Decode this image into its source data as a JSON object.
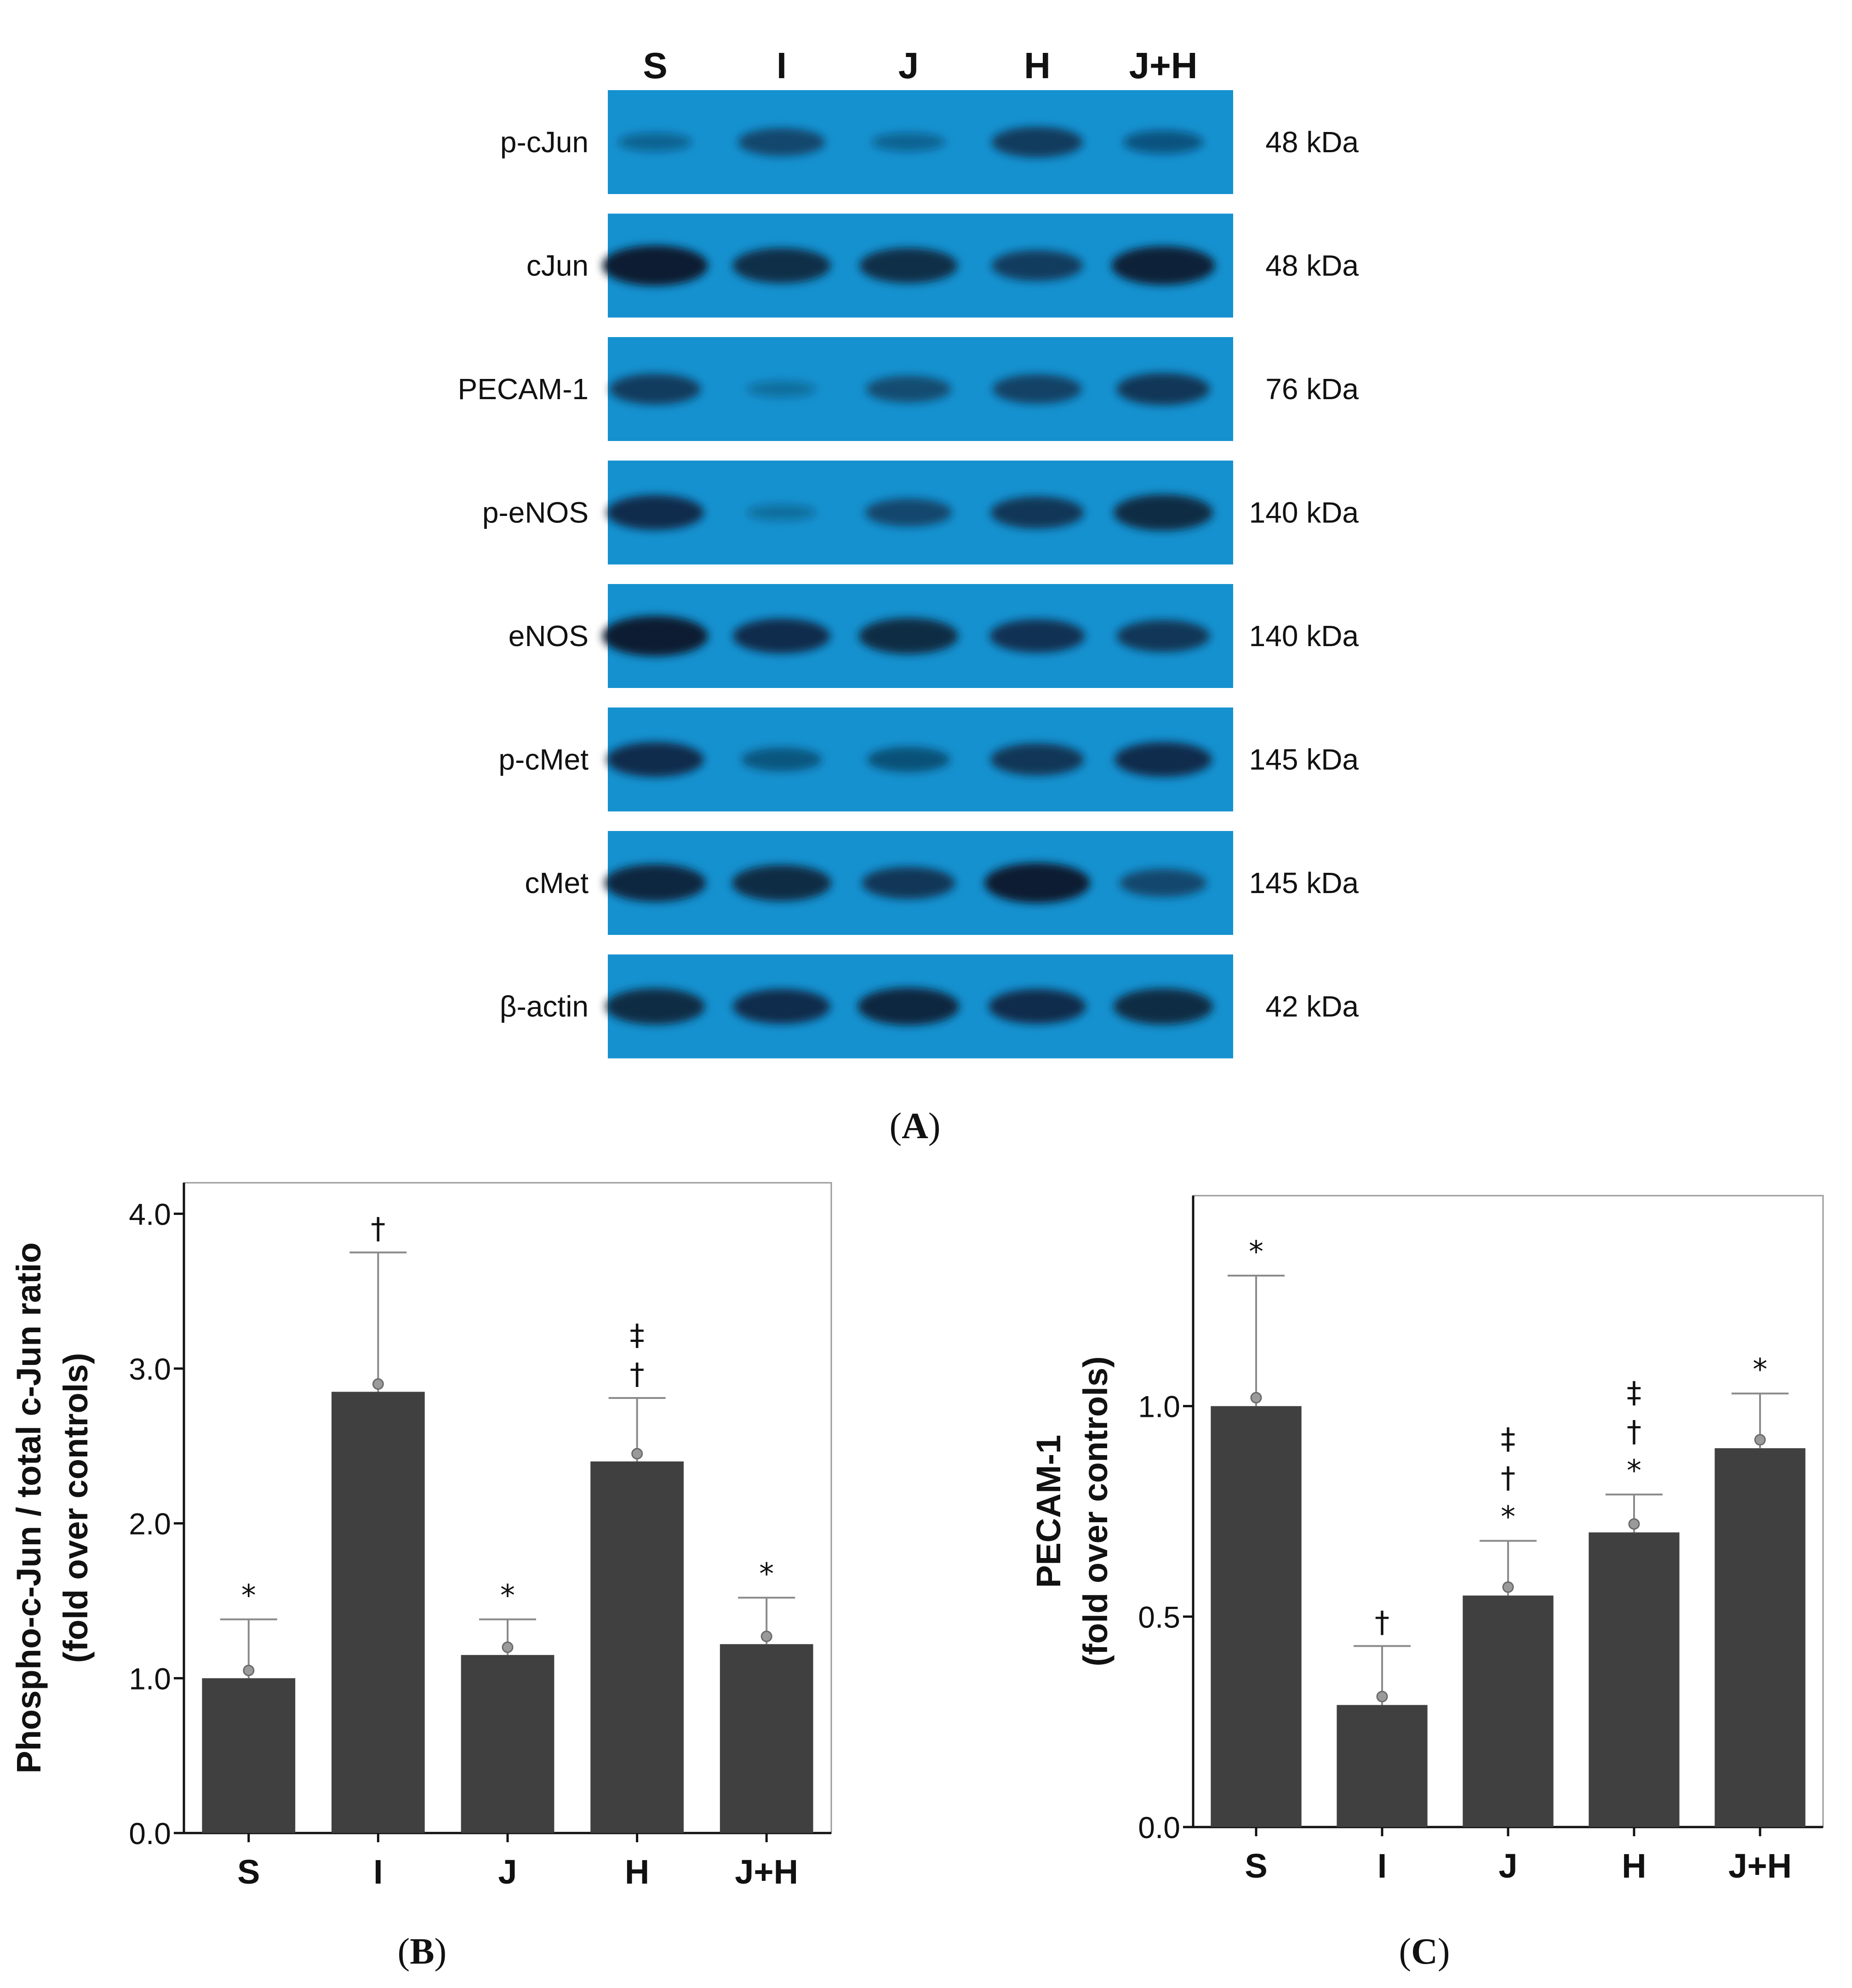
{
  "figure": {
    "panel_a_label": "A",
    "panel_b_label": "B",
    "panel_c_label": "C"
  },
  "blot": {
    "lanes": [
      "S",
      "I",
      "J",
      "H",
      "J+H"
    ],
    "membrane_color": "#1591cf",
    "band_color": "#0b1c33",
    "rows": [
      {
        "label": "p-cJun",
        "size": "48 kDa",
        "intensity": [
          0.22,
          0.55,
          0.22,
          0.65,
          0.38
        ]
      },
      {
        "label": "cJun",
        "size": "48 kDa",
        "intensity": [
          1.0,
          0.82,
          0.82,
          0.65,
          0.95
        ]
      },
      {
        "label": "PECAM-1",
        "size": "76 kDa",
        "intensity": [
          0.65,
          0.12,
          0.5,
          0.6,
          0.7
        ]
      },
      {
        "label": "p-eNOS",
        "size": "140 kDa",
        "intensity": [
          0.8,
          0.12,
          0.55,
          0.7,
          0.85
        ]
      },
      {
        "label": "eNOS",
        "size": "140 kDa",
        "intensity": [
          1.0,
          0.8,
          0.85,
          0.75,
          0.7
        ]
      },
      {
        "label": "p-cMet",
        "size": "145 kDa",
        "intensity": [
          0.8,
          0.4,
          0.45,
          0.7,
          0.8
        ]
      },
      {
        "label": "cMet",
        "size": "145 kDa",
        "intensity": [
          0.9,
          0.85,
          0.7,
          1.0,
          0.55
        ]
      },
      {
        "label": "β-actin",
        "size": "42 kDa",
        "intensity": [
          0.85,
          0.8,
          0.9,
          0.8,
          0.85
        ]
      }
    ]
  },
  "chart_data": [
    {
      "type": "bar",
      "panel": "B",
      "title": "",
      "ylabel": "Phospho-c-Jun / total c-Jun ratio",
      "ylabel2": "(fold over controls)",
      "xlabel": "",
      "categories": [
        "S",
        "I",
        "J",
        "H",
        "J+H"
      ],
      "values": [
        1.0,
        2.85,
        1.15,
        2.4,
        1.22
      ],
      "errors": [
        0.38,
        0.9,
        0.23,
        0.41,
        0.3
      ],
      "points": [
        1.05,
        2.9,
        1.2,
        2.45,
        1.27
      ],
      "annotations": [
        "*",
        "†",
        "*",
        "‡\n†",
        "*"
      ],
      "ylim": [
        0,
        4.2
      ],
      "yticks": [
        0.0,
        1.0,
        2.0,
        3.0,
        4.0
      ],
      "ytick_labels": [
        "0.0",
        "1.0",
        "2.0",
        "3.0",
        "4.0"
      ],
      "bar_color": "#404040"
    },
    {
      "type": "bar",
      "panel": "C",
      "title": "",
      "ylabel": "PECAM-1",
      "ylabel2": "(fold over controls)",
      "xlabel": "",
      "categories": [
        "S",
        "I",
        "J",
        "H",
        "J+H"
      ],
      "values": [
        1.0,
        0.29,
        0.55,
        0.7,
        0.9
      ],
      "errors": [
        0.31,
        0.14,
        0.13,
        0.09,
        0.13
      ],
      "points": [
        1.02,
        0.31,
        0.57,
        0.72,
        0.92
      ],
      "annotations": [
        "*",
        "†",
        "‡\n†\n*",
        "‡\n†\n*",
        "*"
      ],
      "ylim": [
        0,
        1.5
      ],
      "yticks": [
        0.0,
        0.5,
        1.0
      ],
      "ytick_labels": [
        "0.0",
        "0.5",
        "1.0"
      ],
      "bar_color": "#404040"
    }
  ]
}
